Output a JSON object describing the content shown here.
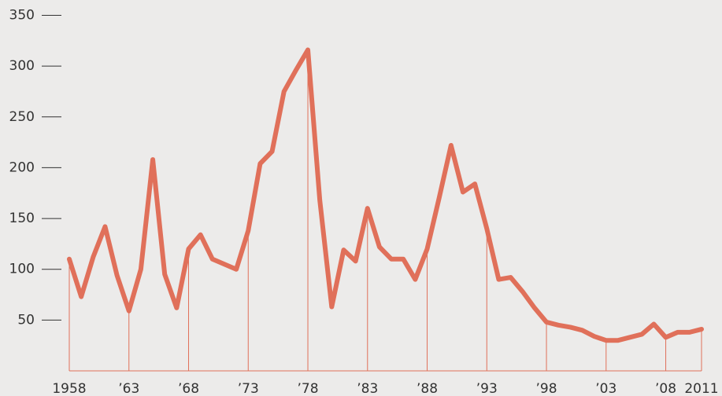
{
  "chart_data": {
    "type": "line",
    "x": [
      1958,
      1959,
      1960,
      1961,
      1962,
      1963,
      1964,
      1965,
      1966,
      1967,
      1968,
      1969,
      1970,
      1971,
      1972,
      1973,
      1974,
      1975,
      1976,
      1977,
      1978,
      1979,
      1980,
      1981,
      1982,
      1983,
      1984,
      1985,
      1986,
      1987,
      1988,
      1989,
      1990,
      1991,
      1992,
      1993,
      1994,
      1995,
      1996,
      1997,
      1998,
      1999,
      2000,
      2001,
      2002,
      2003,
      2004,
      2005,
      2006,
      2007,
      2008,
      2009,
      2010,
      2011
    ],
    "series": [
      {
        "color": "#e0705a",
        "values": [
          110,
          73,
          112,
          142,
          94,
          59,
          100,
          208,
          95,
          62,
          120,
          134,
          110,
          105,
          100,
          138,
          204,
          216,
          275,
          296,
          316,
          168,
          63,
          119,
          108,
          160,
          122,
          110,
          110,
          90,
          120,
          170,
          222,
          176,
          184,
          140,
          90,
          92,
          78,
          62,
          48,
          45,
          43,
          40,
          34,
          30,
          30,
          33,
          36,
          46,
          33,
          38,
          38,
          41
        ]
      }
    ],
    "xlim": [
      1958,
      2011
    ],
    "xticks": [
      1958,
      {
        "value": 1963,
        "label": "’63"
      },
      {
        "value": 1968,
        "label": "’68"
      },
      {
        "value": 1973,
        "label": "’73"
      },
      {
        "value": 1978,
        "label": "’78"
      },
      {
        "value": 1983,
        "label": "’83"
      },
      {
        "value": 1988,
        "label": "’88"
      },
      {
        "value": 1993,
        "label": "’93"
      },
      {
        "value": 1998,
        "label": "’98"
      },
      {
        "value": 2003,
        "label": "’03"
      },
      {
        "value": 2008,
        "label": "’08"
      },
      2011
    ],
    "ylim": [
      0,
      350
    ],
    "yticks": [
      50,
      100,
      150,
      200,
      250,
      300,
      350
    ]
  }
}
